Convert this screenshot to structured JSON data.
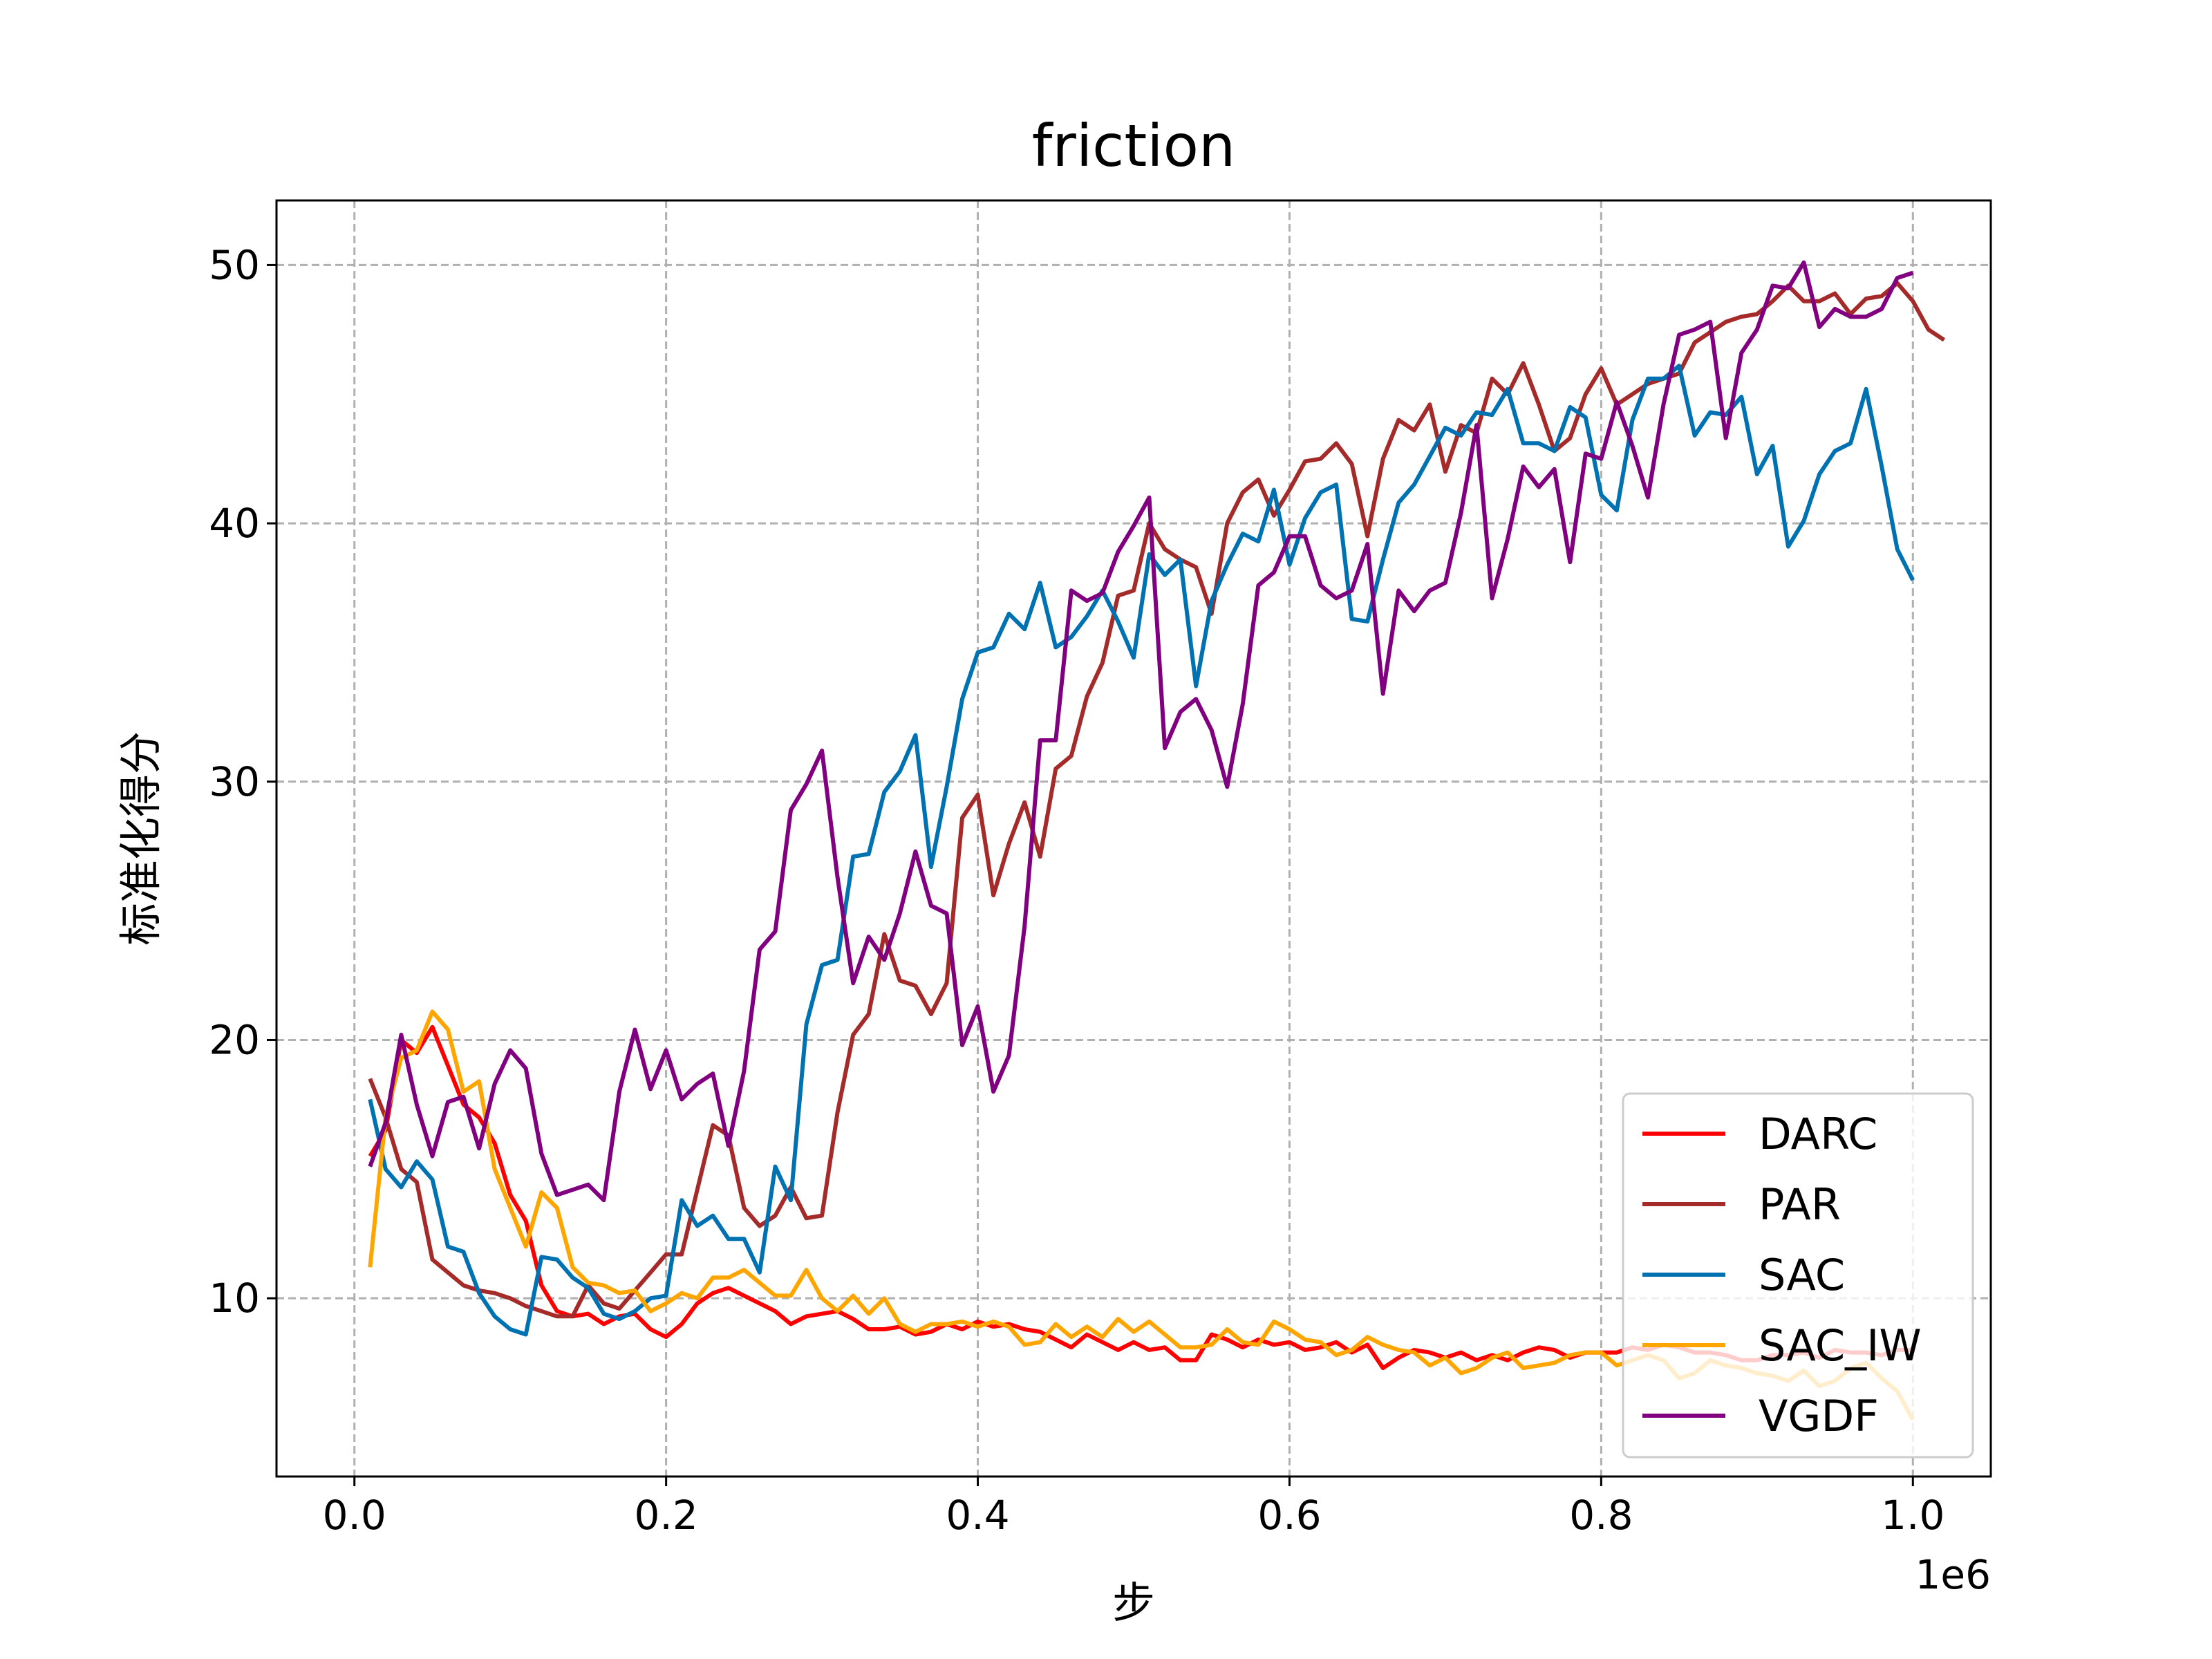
{
  "chart_data": {
    "type": "line",
    "title": "friction",
    "xlabel": "步",
    "ylabel": "标准化得分",
    "x_offset_label": "1e6",
    "xlim": [
      -0.05,
      1.05
    ],
    "ylim": [
      3.1,
      52.5
    ],
    "x_ticks": [
      0.0,
      0.2,
      0.4,
      0.6,
      0.8,
      1.0
    ],
    "x_tick_labels": [
      "0.0",
      "0.2",
      "0.4",
      "0.6",
      "0.8",
      "1.0"
    ],
    "y_ticks": [
      10,
      20,
      30,
      40,
      50
    ],
    "y_tick_labels": [
      "10",
      "20",
      "30",
      "40",
      "50"
    ],
    "grid": true,
    "legend_position": "lower-right",
    "x_start": 0.01,
    "x_step": 0.01,
    "series": [
      {
        "name": "DARC",
        "color": "#ff0000",
        "values": [
          15.5,
          16.5,
          20.0,
          19.5,
          20.5,
          19.0,
          17.5,
          17.0,
          16.0,
          14.0,
          13.0,
          10.5,
          9.5,
          9.3,
          9.4,
          9.0,
          9.3,
          9.4,
          8.8,
          8.5,
          9.0,
          9.8,
          10.2,
          10.4,
          10.1,
          9.8,
          9.5,
          9.0,
          9.3,
          9.4,
          9.5,
          9.2,
          8.8,
          8.8,
          8.9,
          8.6,
          8.7,
          9.0,
          8.8,
          9.1,
          8.9,
          9.0,
          8.8,
          8.7,
          8.4,
          8.1,
          8.6,
          8.3,
          8.0,
          8.3,
          8.0,
          8.1,
          7.6,
          7.6,
          8.6,
          8.4,
          8.1,
          8.4,
          8.2,
          8.3,
          8.0,
          8.1,
          8.3,
          7.9,
          8.2,
          7.3,
          7.7,
          8.0,
          7.9,
          7.7,
          7.9,
          7.6,
          7.8,
          7.6,
          7.9,
          8.1,
          8.0,
          7.7,
          7.9,
          7.9,
          7.9,
          8.1,
          8.0,
          8.2,
          8.1,
          7.9,
          7.9,
          7.8,
          7.6,
          7.6,
          7.8,
          7.8,
          7.9,
          7.7,
          8.0,
          7.9,
          7.9,
          7.8,
          8.0,
          8.0
        ]
      },
      {
        "name": "PAR",
        "color": "#a52a2a",
        "values": [
          18.5,
          17.0,
          15.0,
          14.5,
          11.5,
          11.0,
          10.5,
          10.3,
          10.2,
          10.0,
          9.7,
          9.5,
          9.3,
          9.3,
          10.5,
          9.8,
          9.6,
          10.3,
          11.0,
          11.7,
          11.7,
          14.2,
          16.7,
          16.3,
          13.5,
          12.8,
          13.2,
          14.3,
          13.1,
          13.2,
          17.2,
          20.2,
          21.0,
          24.1,
          22.3,
          22.1,
          21.0,
          22.2,
          28.6,
          29.5,
          25.6,
          27.6,
          29.2,
          27.1,
          30.5,
          31.0,
          33.3,
          34.6,
          37.2,
          37.4,
          40.0,
          39.0,
          38.6,
          38.3,
          36.5,
          40.0,
          41.2,
          41.7,
          40.3,
          41.3,
          42.4,
          42.5,
          43.1,
          42.3,
          39.5,
          42.5,
          44.0,
          43.6,
          44.6,
          42.0,
          43.8,
          43.5,
          45.6,
          45.0,
          46.2,
          44.6,
          42.8,
          43.3,
          45.0,
          46.0,
          44.6,
          45.0,
          45.4,
          45.6,
          45.8,
          47.0,
          47.4,
          47.8,
          48.0,
          48.1,
          48.6,
          49.2,
          48.6,
          48.6,
          48.9,
          48.1,
          48.7,
          48.8,
          49.3,
          48.6,
          47.5,
          47.1
        ]
      },
      {
        "name": "SAC",
        "color": "#0072b2",
        "values": [
          17.7,
          15.0,
          14.3,
          15.3,
          14.6,
          12.0,
          11.8,
          10.2,
          9.3,
          8.8,
          8.6,
          11.6,
          11.5,
          10.8,
          10.4,
          9.4,
          9.2,
          9.5,
          10.0,
          10.1,
          13.8,
          12.8,
          13.2,
          12.3,
          12.3,
          11.0,
          15.1,
          13.8,
          20.6,
          22.9,
          23.1,
          27.1,
          27.2,
          29.6,
          30.4,
          31.8,
          26.7,
          29.8,
          33.2,
          35.0,
          35.2,
          36.5,
          35.9,
          37.7,
          35.2,
          35.6,
          36.4,
          37.4,
          36.2,
          34.8,
          38.8,
          38.0,
          38.6,
          33.7,
          37.0,
          38.4,
          39.6,
          39.3,
          41.3,
          38.4,
          40.2,
          41.2,
          41.5,
          36.3,
          36.2,
          38.6,
          40.8,
          41.5,
          42.6,
          43.7,
          43.4,
          44.3,
          44.2,
          45.2,
          43.1,
          43.1,
          42.8,
          44.5,
          44.1,
          41.1,
          40.5,
          44.0,
          45.6,
          45.6,
          46.1,
          43.4,
          44.3,
          44.2,
          44.9,
          41.9,
          43.0,
          39.1,
          40.1,
          41.9,
          42.8,
          43.1,
          45.2,
          42.2,
          39.0,
          37.8
        ]
      },
      {
        "name": "SAC_IW",
        "color": "#ffa500",
        "values": [
          11.2,
          17.0,
          19.3,
          19.6,
          21.1,
          20.4,
          18.0,
          18.4,
          15.0,
          13.5,
          12.0,
          14.1,
          13.5,
          11.2,
          10.6,
          10.5,
          10.2,
          10.3,
          9.5,
          9.8,
          10.2,
          10.0,
          10.8,
          10.8,
          11.1,
          10.6,
          10.1,
          10.1,
          11.1,
          10.0,
          9.5,
          10.1,
          9.4,
          10.0,
          9.0,
          8.7,
          9.0,
          9.0,
          9.1,
          8.9,
          9.1,
          8.9,
          8.2,
          8.3,
          9.0,
          8.5,
          8.9,
          8.5,
          9.2,
          8.7,
          9.1,
          8.6,
          8.1,
          8.1,
          8.2,
          8.8,
          8.3,
          8.2,
          9.1,
          8.8,
          8.4,
          8.3,
          7.8,
          8.0,
          8.5,
          8.2,
          8.0,
          7.9,
          7.4,
          7.7,
          7.1,
          7.3,
          7.7,
          7.9,
          7.3,
          7.4,
          7.5,
          7.8,
          7.9,
          7.9,
          7.4,
          7.6,
          7.8,
          7.6,
          6.9,
          7.1,
          7.6,
          7.4,
          7.3,
          7.1,
          7.0,
          6.8,
          7.2,
          6.6,
          6.8,
          7.3,
          7.5,
          6.9,
          6.4,
          5.3
        ]
      },
      {
        "name": "VGDF",
        "color": "#800080",
        "values": [
          15.1,
          16.8,
          20.2,
          17.5,
          15.5,
          17.6,
          17.8,
          15.8,
          18.3,
          19.6,
          18.9,
          15.6,
          14.0,
          14.2,
          14.4,
          13.8,
          18.0,
          20.4,
          18.1,
          19.6,
          17.7,
          18.3,
          18.7,
          15.9,
          18.8,
          23.5,
          24.2,
          28.9,
          29.9,
          31.2,
          26.3,
          22.2,
          24.0,
          23.1,
          24.9,
          27.3,
          25.2,
          24.9,
          19.8,
          21.3,
          18.0,
          19.4,
          24.4,
          31.6,
          31.6,
          37.4,
          37.0,
          37.3,
          38.9,
          39.9,
          41.0,
          31.3,
          32.7,
          33.2,
          32.0,
          29.8,
          33.0,
          37.6,
          38.1,
          39.5,
          39.5,
          37.6,
          37.1,
          37.4,
          39.2,
          33.4,
          37.4,
          36.6,
          37.4,
          37.7,
          40.4,
          43.8,
          37.1,
          39.4,
          42.2,
          41.4,
          42.1,
          38.5,
          42.7,
          42.5,
          44.7,
          43.0,
          41.0,
          44.6,
          47.3,
          47.5,
          47.8,
          43.3,
          46.6,
          47.5,
          49.2,
          49.1,
          50.1,
          47.6,
          48.3,
          48.0,
          48.0,
          48.3,
          49.5,
          49.7
        ]
      }
    ]
  }
}
